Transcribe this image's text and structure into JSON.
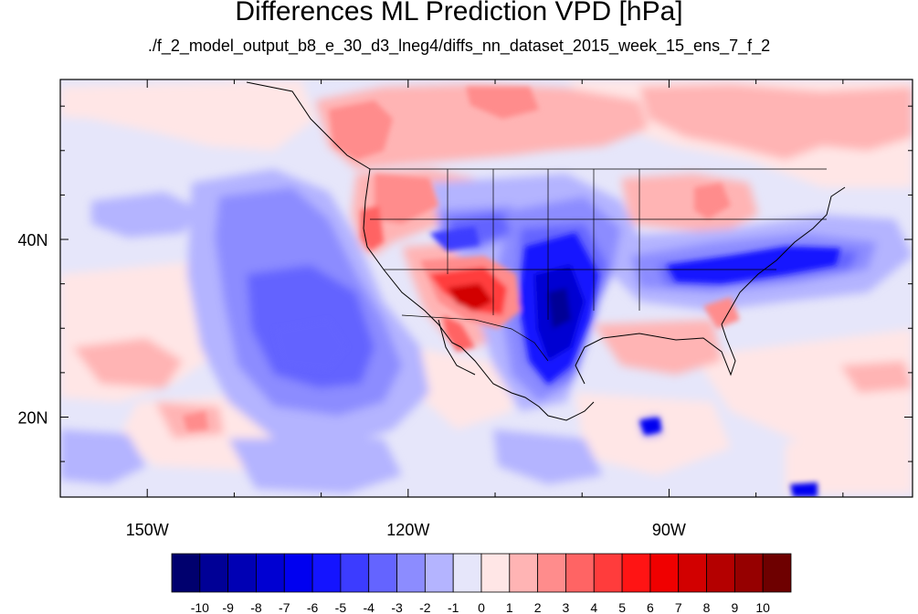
{
  "title": "Differences ML Prediction VPD [hPa]",
  "subtitle": "./f_2_model_output_b8_e_30_d3_lneg4/diffs_nn_dataset_2015_week_15_ens_7_f_2",
  "map": {
    "lon_range": [
      -160,
      -62
    ],
    "lat_range": [
      11,
      58
    ],
    "lon_ticks": [
      {
        "value": -150,
        "label": "150W"
      },
      {
        "value": -120,
        "label": "120W"
      },
      {
        "value": -90,
        "label": "90W"
      }
    ],
    "lat_ticks": [
      {
        "value": 40,
        "label": "40N"
      },
      {
        "value": 20,
        "label": "20N"
      }
    ],
    "field": "VPD difference",
    "units": "hPa"
  },
  "colorbar": {
    "labels": [
      "-10",
      "-9",
      "-8",
      "-7",
      "-6",
      "-5",
      "-4",
      "-3",
      "-2",
      "-1",
      "0",
      "1",
      "2",
      "3",
      "4",
      "5",
      "6",
      "7",
      "8",
      "9",
      "10"
    ],
    "colors": [
      "#00006e",
      "#000096",
      "#0000b4",
      "#0000d2",
      "#0000f0",
      "#1414ff",
      "#3c3cff",
      "#6464ff",
      "#8c8cff",
      "#b4b4ff",
      "#e6e6fa",
      "#ffe6e6",
      "#ffb4b4",
      "#ff8c8c",
      "#ff6464",
      "#ff3c3c",
      "#ff1414",
      "#f00000",
      "#d20000",
      "#b40000",
      "#960000",
      "#6e0000"
    ]
  }
}
